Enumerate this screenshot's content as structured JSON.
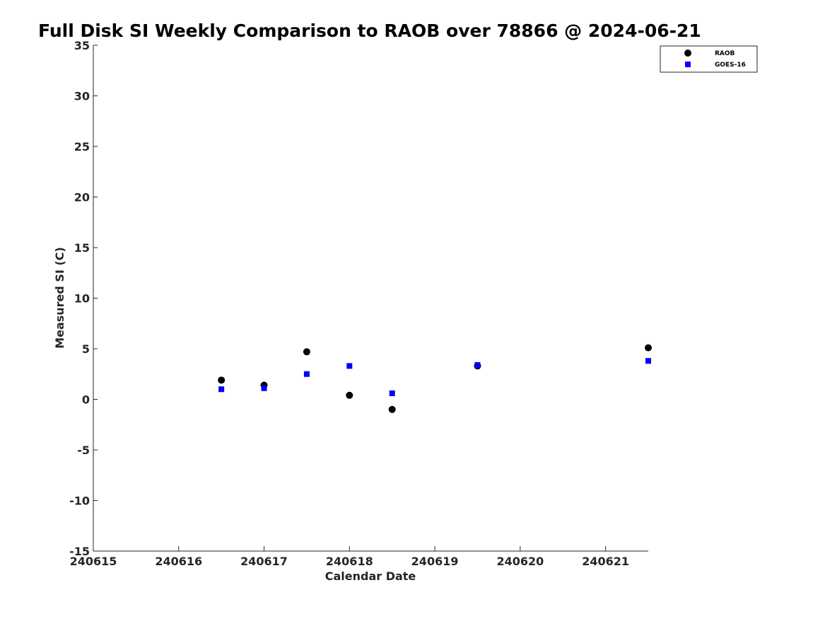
{
  "chart_data": {
    "type": "scatter",
    "title": "Full Disk SI Weekly Comparison to RAOB over 78866 @ 2024-06-21",
    "xlabel": "Calendar Date",
    "ylabel": "Measured SI (C)",
    "xlim": [
      240615,
      240621.5
    ],
    "ylim": [
      -15,
      35
    ],
    "x_ticks": [
      240615,
      240616,
      240617,
      240618,
      240619,
      240620,
      240621
    ],
    "x_tick_labels": [
      "240615",
      "240616",
      "240617",
      "240618",
      "240619",
      "240620",
      "240621"
    ],
    "y_ticks": [
      35,
      30,
      25,
      20,
      15,
      10,
      5,
      0,
      -5,
      -10,
      -15
    ],
    "y_tick_labels": [
      "35",
      "30",
      "25",
      "20",
      "15",
      "10",
      "5",
      "0",
      "-5",
      "-10",
      "-15"
    ],
    "grid": false,
    "legend_position": "top-right",
    "series": [
      {
        "name": "RAOB",
        "marker": "circle",
        "color": "#000000",
        "points": [
          {
            "x": 240616.5,
            "y": 1.9
          },
          {
            "x": 240617.0,
            "y": 1.4
          },
          {
            "x": 240617.5,
            "y": 4.7
          },
          {
            "x": 240618.0,
            "y": 0.4
          },
          {
            "x": 240618.5,
            "y": -1.0
          },
          {
            "x": 240619.5,
            "y": 3.3
          },
          {
            "x": 240621.5,
            "y": 5.1
          }
        ]
      },
      {
        "name": "GOES-16",
        "marker": "square",
        "color": "#0000ff",
        "points": [
          {
            "x": 240616.5,
            "y": 1.0
          },
          {
            "x": 240617.0,
            "y": 1.1
          },
          {
            "x": 240617.5,
            "y": 2.5
          },
          {
            "x": 240618.0,
            "y": 3.3
          },
          {
            "x": 240618.5,
            "y": 0.6
          },
          {
            "x": 240619.5,
            "y": 3.4
          },
          {
            "x": 240621.5,
            "y": 3.8
          }
        ]
      }
    ]
  }
}
